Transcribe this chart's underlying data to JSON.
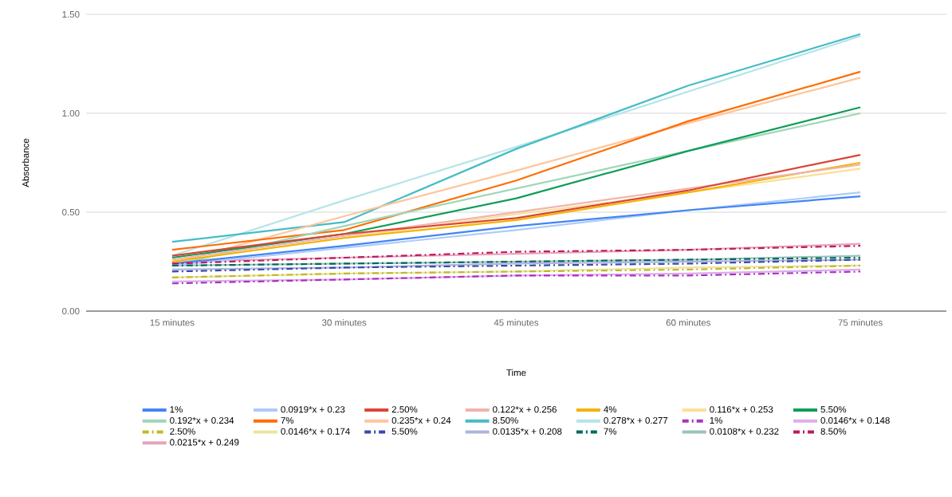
{
  "chart_data": {
    "type": "line",
    "xlabel": "Time",
    "ylabel": "Absorbance",
    "categories": [
      "15 minutes",
      "30 minutes",
      "45 minutes",
      "60 minutes",
      "75 minutes"
    ],
    "ylim": [
      0,
      1.5
    ],
    "yticks": [
      {
        "value": 0,
        "label": "0.00"
      },
      {
        "value": 0.5,
        "label": "0.50"
      },
      {
        "value": 1.0,
        "label": "1.00"
      },
      {
        "value": 1.5,
        "label": "1.50"
      }
    ],
    "grid": "y",
    "legend": "bottom",
    "marker": "none",
    "series": [
      {
        "name": "1%",
        "color": "#4285f4",
        "values": [
          0.24,
          0.33,
          0.43,
          0.51,
          0.58
        ],
        "line_style": "solid"
      },
      {
        "name": "0.0919*x + 0.23",
        "color": "#aecbfa",
        "values": [
          0.23,
          0.32,
          0.41,
          0.51,
          0.6
        ],
        "line_style": "solid"
      },
      {
        "name": "2.50%",
        "color": "#db4437",
        "values": [
          0.28,
          0.39,
          0.47,
          0.61,
          0.79
        ],
        "line_style": "solid"
      },
      {
        "name": "0.122*x + 0.256",
        "color": "#f0b4ae",
        "values": [
          0.26,
          0.38,
          0.5,
          0.62,
          0.74
        ],
        "line_style": "solid"
      },
      {
        "name": "4%",
        "color": "#f4b400",
        "values": [
          0.25,
          0.37,
          0.46,
          0.6,
          0.75
        ],
        "line_style": "solid"
      },
      {
        "name": "0.116*x + 0.253",
        "color": "#fcdf94",
        "values": [
          0.25,
          0.37,
          0.49,
          0.6,
          0.72
        ],
        "line_style": "solid"
      },
      {
        "name": "5.50%",
        "color": "#0f9d58",
        "values": [
          0.27,
          0.39,
          0.57,
          0.81,
          1.03
        ],
        "line_style": "solid"
      },
      {
        "name": "0.192*x + 0.234",
        "color": "#9fd6b8",
        "values": [
          0.23,
          0.43,
          0.62,
          0.81,
          1.0
        ],
        "line_style": "solid"
      },
      {
        "name": "7%",
        "color": "#ff6d00",
        "values": [
          0.31,
          0.41,
          0.66,
          0.96,
          1.21
        ],
        "line_style": "solid"
      },
      {
        "name": "0.235*x + 0.24",
        "color": "#ffc59b",
        "values": [
          0.24,
          0.48,
          0.71,
          0.95,
          1.18
        ],
        "line_style": "solid"
      },
      {
        "name": "8.50%",
        "color": "#46bdc6",
        "values": [
          0.35,
          0.45,
          0.82,
          1.14,
          1.4
        ],
        "line_style": "solid"
      },
      {
        "name": "0.278*x + 0.277",
        "color": "#b5e4e8",
        "values": [
          0.28,
          0.56,
          0.83,
          1.11,
          1.39
        ],
        "line_style": "solid"
      },
      {
        "name": "1%",
        "color": "#ab30c4",
        "values": [
          0.14,
          0.16,
          0.18,
          0.18,
          0.2
        ],
        "line_style": "dashed"
      },
      {
        "name": "0.0146*x + 0.148",
        "color": "#ddadea",
        "values": [
          0.15,
          0.16,
          0.18,
          0.19,
          0.21
        ],
        "line_style": "solid"
      },
      {
        "name": "2.50%",
        "color": "#c0b92a",
        "values": [
          0.17,
          0.19,
          0.2,
          0.21,
          0.23
        ],
        "line_style": "dashed"
      },
      {
        "name": "0.0146*x + 0.174",
        "color": "#e9e59e",
        "values": [
          0.17,
          0.19,
          0.2,
          0.22,
          0.23
        ],
        "line_style": "solid"
      },
      {
        "name": "5.50%",
        "color": "#3949ab",
        "values": [
          0.2,
          0.22,
          0.23,
          0.24,
          0.26
        ],
        "line_style": "dashed"
      },
      {
        "name": "0.0135*x + 0.208",
        "color": "#b0b5dd",
        "values": [
          0.21,
          0.22,
          0.24,
          0.25,
          0.26
        ],
        "line_style": "solid"
      },
      {
        "name": "7%",
        "color": "#00695c",
        "values": [
          0.23,
          0.24,
          0.25,
          0.26,
          0.27
        ],
        "line_style": "dashed"
      },
      {
        "name": "0.0108*x + 0.232",
        "color": "#99c3bd",
        "values": [
          0.23,
          0.24,
          0.25,
          0.26,
          0.28
        ],
        "line_style": "solid"
      },
      {
        "name": "8.50%",
        "color": "#c2185b",
        "values": [
          0.24,
          0.27,
          0.3,
          0.31,
          0.33
        ],
        "line_style": "dashed"
      },
      {
        "name": "0.0215*x + 0.249",
        "color": "#e7a3be",
        "values": [
          0.25,
          0.27,
          0.29,
          0.31,
          0.34
        ],
        "line_style": "solid"
      }
    ]
  }
}
